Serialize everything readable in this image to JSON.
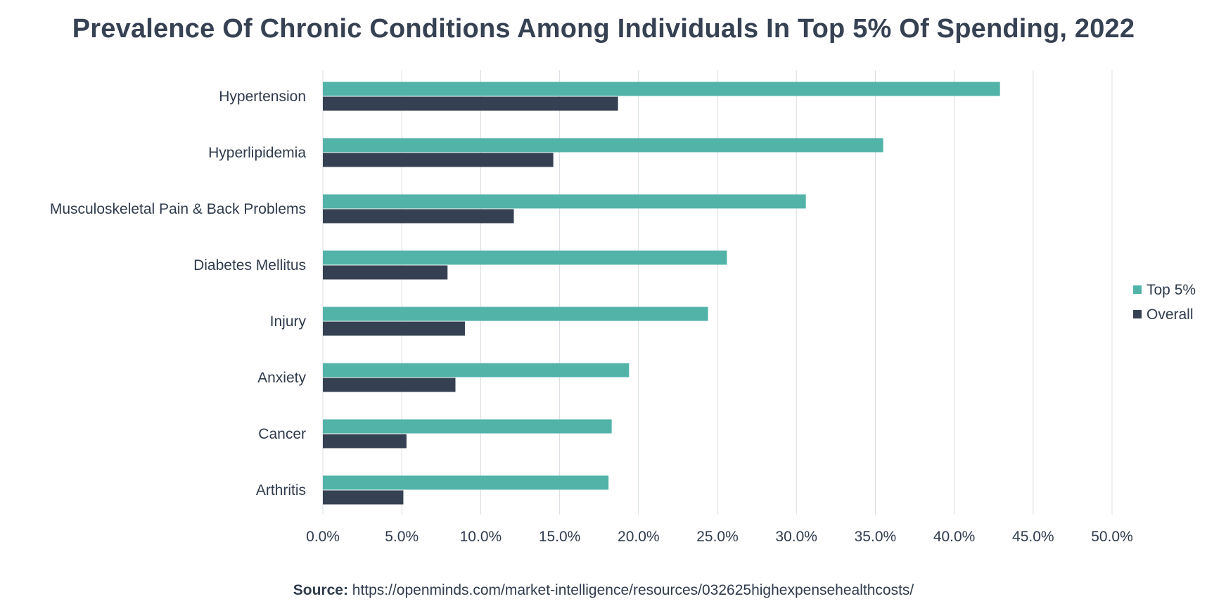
{
  "colors": {
    "top5": "#52b3a8",
    "overall": "#354152",
    "grid": "#d9dde1",
    "text": "#2f3b4c"
  },
  "chart_data": {
    "type": "bar",
    "orientation": "horizontal",
    "title": "Prevalence Of Chronic Conditions Among Individuals In Top 5% Of Spending, 2022",
    "categories": [
      "Hypertension",
      "Hyperlipidemia",
      "Musculoskeletal Pain & Back Problems",
      "Diabetes Mellitus",
      "Injury",
      "Anxiety",
      "Cancer",
      "Arthritis"
    ],
    "series": [
      {
        "name": "Top 5%",
        "values": [
          42.9,
          35.5,
          30.6,
          25.6,
          24.4,
          19.4,
          18.3,
          18.1
        ]
      },
      {
        "name": "Overall",
        "values": [
          18.7,
          14.6,
          12.1,
          7.9,
          9.0,
          8.4,
          5.3,
          5.1
        ]
      }
    ],
    "xlim": [
      0,
      50
    ],
    "xticks": [
      "0.0%",
      "5.0%",
      "10.0%",
      "15.0%",
      "20.0%",
      "25.0%",
      "30.0%",
      "35.0%",
      "40.0%",
      "45.0%",
      "50.0%"
    ],
    "xlabel": "",
    "ylabel": "",
    "grid": "vertical",
    "legend_position": "right"
  },
  "source": {
    "label": "Source:",
    "url": "https://openminds.com/market-intelligence/resources/032625highexpensehealthcosts/"
  }
}
